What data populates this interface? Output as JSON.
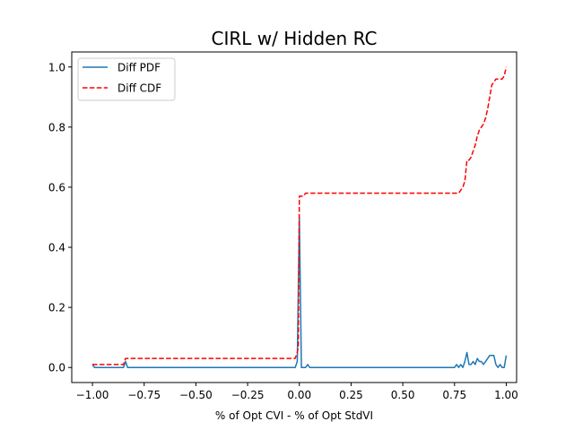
{
  "chart_data": {
    "type": "line",
    "title": "CIRL w/ Hidden RC",
    "xlabel": "% of Opt CVI - % of Opt StdVI",
    "ylabel": "",
    "xlim": [
      -1.1,
      1.05
    ],
    "ylim": [
      -0.05,
      1.05
    ],
    "xticks": [
      -1.0,
      -0.75,
      -0.5,
      -0.25,
      0.0,
      0.25,
      0.5,
      0.75,
      1.0
    ],
    "xtick_labels": [
      "−1.00",
      "−0.75",
      "−0.50",
      "−0.25",
      "0.00",
      "0.25",
      "0.50",
      "0.75",
      "1.00"
    ],
    "yticks": [
      0.0,
      0.2,
      0.4,
      0.6,
      0.8,
      1.0
    ],
    "ytick_labels": [
      "0.0",
      "0.2",
      "0.4",
      "0.6",
      "0.8",
      "1.0"
    ],
    "grid": false,
    "legend_position": "top-left",
    "series": [
      {
        "name": "Diff PDF",
        "color": "#1f77b4",
        "style": "solid",
        "x": [
          -1.0,
          -0.99,
          -0.85,
          -0.84,
          -0.83,
          -0.02,
          -0.01,
          0.0,
          0.01,
          0.02,
          0.03,
          0.04,
          0.05,
          0.75,
          0.76,
          0.77,
          0.78,
          0.79,
          0.8,
          0.81,
          0.82,
          0.83,
          0.84,
          0.85,
          0.86,
          0.87,
          0.88,
          0.89,
          0.9,
          0.91,
          0.92,
          0.93,
          0.94,
          0.95,
          0.96,
          0.97,
          0.98,
          0.99,
          1.0
        ],
        "y": [
          0.01,
          0.0,
          0.0,
          0.02,
          0.0,
          0.0,
          0.02,
          0.5,
          0.0,
          0.0,
          0.0,
          0.01,
          0.0,
          0.0,
          0.01,
          0.0,
          0.01,
          0.0,
          0.02,
          0.05,
          0.01,
          0.01,
          0.02,
          0.01,
          0.03,
          0.02,
          0.02,
          0.01,
          0.02,
          0.03,
          0.04,
          0.04,
          0.04,
          0.01,
          0.0,
          0.01,
          0.0,
          0.0,
          0.04
        ]
      },
      {
        "name": "Diff CDF",
        "color": "#ff0000",
        "style": "dashed",
        "x": [
          -1.0,
          -0.85,
          -0.84,
          -0.83,
          -0.02,
          -0.01,
          -0.005,
          0.0,
          0.01,
          0.02,
          0.03,
          0.04,
          0.75,
          0.76,
          0.77,
          0.78,
          0.79,
          0.8,
          0.81,
          0.82,
          0.83,
          0.84,
          0.85,
          0.86,
          0.87,
          0.88,
          0.89,
          0.9,
          0.91,
          0.92,
          0.93,
          0.94,
          0.95,
          0.96,
          0.97,
          0.98,
          0.99,
          1.0
        ],
        "y": [
          0.01,
          0.01,
          0.03,
          0.03,
          0.03,
          0.05,
          0.07,
          0.57,
          0.57,
          0.57,
          0.58,
          0.58,
          0.58,
          0.58,
          0.58,
          0.59,
          0.6,
          0.62,
          0.69,
          0.69,
          0.7,
          0.72,
          0.74,
          0.77,
          0.79,
          0.8,
          0.81,
          0.83,
          0.86,
          0.9,
          0.94,
          0.95,
          0.96,
          0.96,
          0.96,
          0.96,
          0.97,
          1.0
        ]
      }
    ]
  }
}
